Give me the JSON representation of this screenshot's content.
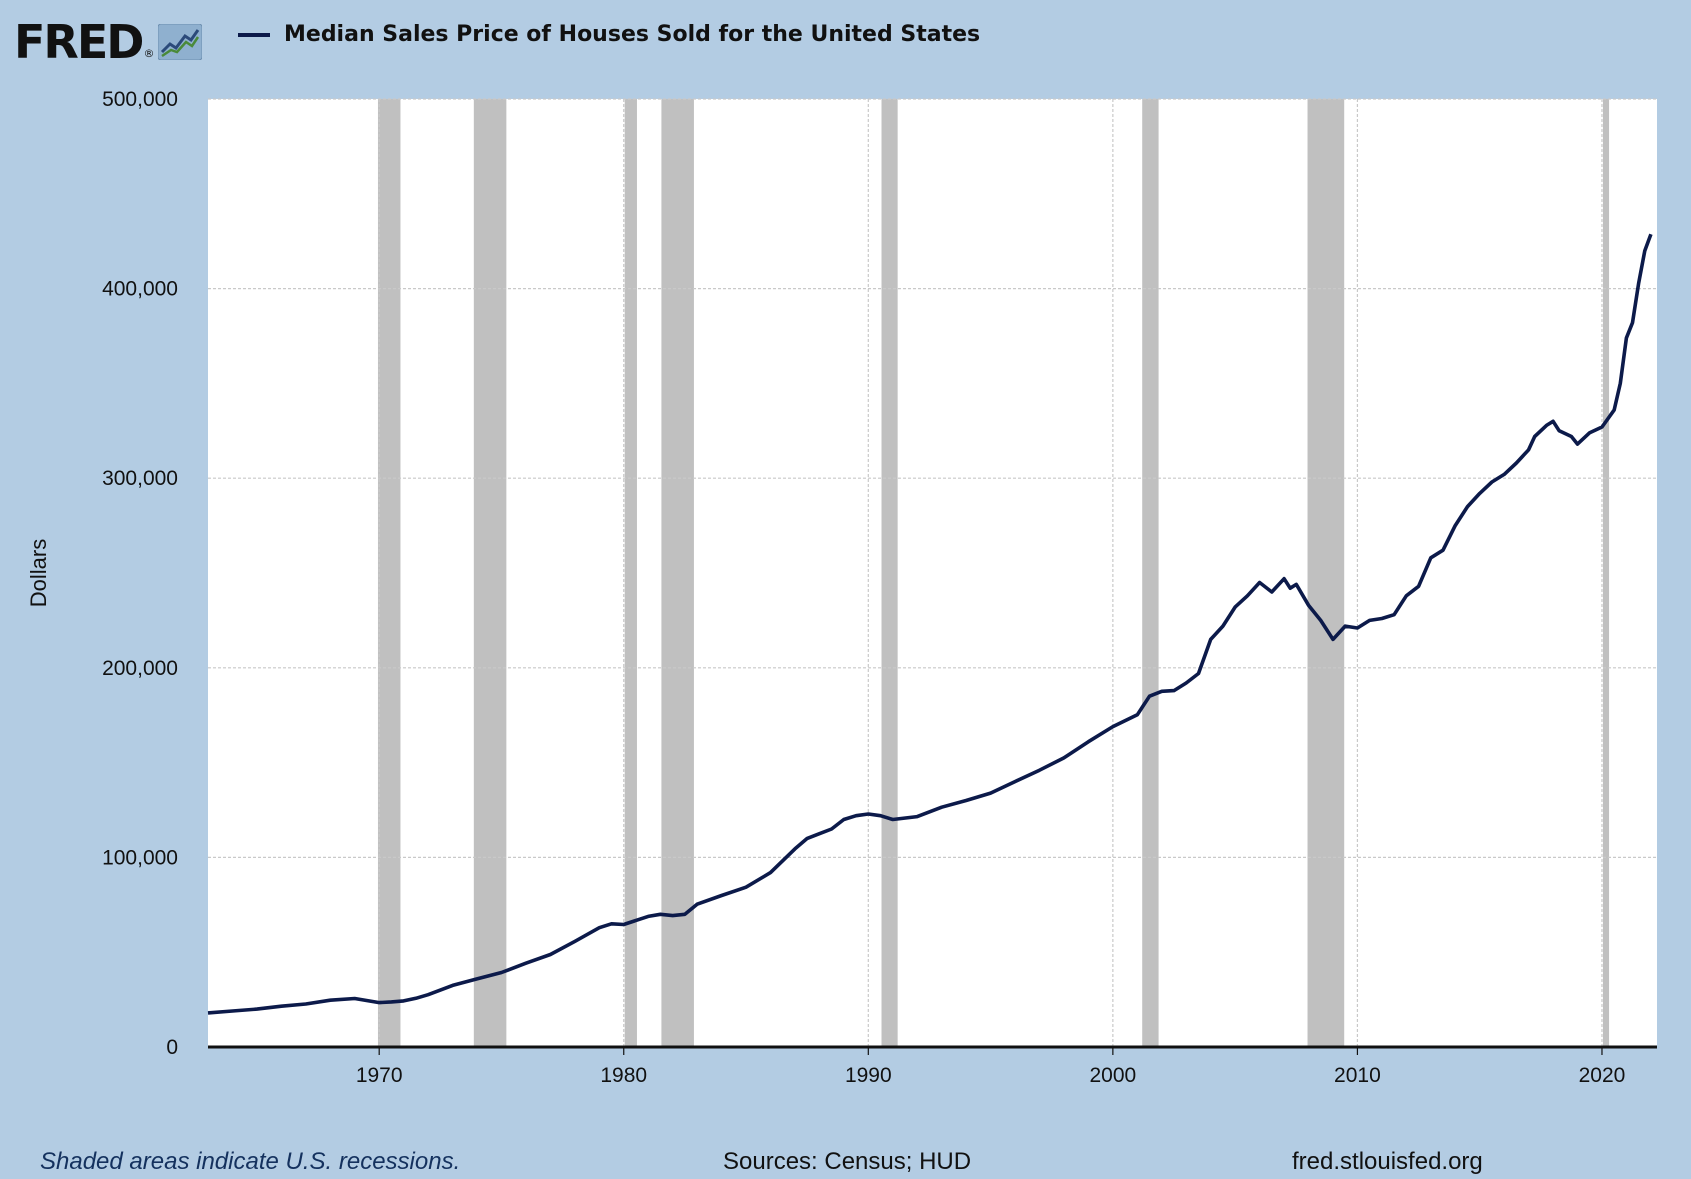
{
  "header": {
    "logo_text": "FRED",
    "logo_mark": "®",
    "logo_icon": "chart-line-icon"
  },
  "footer": {
    "recession_note": "Shaded areas indicate U.S. recessions.",
    "sources": "Sources: Census; HUD",
    "url": "fred.stlouisfed.org"
  },
  "colors": {
    "background": "#b3cce3",
    "plot_background": "#ffffff",
    "line": "#0c1a4a",
    "recession": "#c0c0c0",
    "grid": "#c9c9c9"
  },
  "chart_data": {
    "type": "line",
    "title": "",
    "xlabel": "",
    "ylabel": "Dollars",
    "xlim": [
      1963.0,
      2022.25
    ],
    "ylim": [
      0,
      500000
    ],
    "x_ticks": [
      1970,
      1980,
      1990,
      2000,
      2010,
      2020
    ],
    "y_ticks": [
      0,
      100000,
      200000,
      300000,
      400000,
      500000
    ],
    "y_tick_labels": [
      "0",
      "100,000",
      "200,000",
      "300,000",
      "400,000",
      "500,000"
    ],
    "grid": true,
    "legend_position": "top-left",
    "series": [
      {
        "name": "Median Sales Price of Houses Sold for the United States",
        "x": [
          1963.0,
          1964.0,
          1965.0,
          1966.0,
          1967.0,
          1968.0,
          1969.0,
          1970.0,
          1970.5,
          1971.0,
          1971.5,
          1972.0,
          1973.0,
          1974.0,
          1975.0,
          1976.0,
          1977.0,
          1978.0,
          1979.0,
          1979.5,
          1980.0,
          1981.0,
          1981.5,
          1982.0,
          1982.5,
          1983.0,
          1984.0,
          1985.0,
          1986.0,
          1987.0,
          1987.5,
          1988.0,
          1988.5,
          1989.0,
          1989.5,
          1990.0,
          1990.5,
          1991.0,
          1992.0,
          1993.0,
          1994.0,
          1995.0,
          1996.0,
          1997.0,
          1998.0,
          1999.0,
          2000.0,
          2001.0,
          2001.5,
          2002.0,
          2002.5,
          2003.0,
          2003.5,
          2004.0,
          2004.5,
          2005.0,
          2005.5,
          2006.0,
          2006.5,
          2007.0,
          2007.25,
          2007.5,
          2008.0,
          2008.5,
          2009.0,
          2009.5,
          2010.0,
          2010.5,
          2011.0,
          2011.5,
          2012.0,
          2012.5,
          2013.0,
          2013.5,
          2014.0,
          2014.5,
          2015.0,
          2015.5,
          2016.0,
          2016.5,
          2017.0,
          2017.25,
          2017.75,
          2018.0,
          2018.25,
          2018.75,
          2019.0,
          2019.5,
          2020.0,
          2020.5,
          2020.75,
          2021.0,
          2021.25,
          2021.5,
          2021.75,
          2022.0
        ],
        "values": [
          18000,
          19000,
          20000,
          21500,
          22700,
          24700,
          25600,
          23400,
          23800,
          24300,
          25700,
          27600,
          32500,
          35900,
          39300,
          44200,
          48800,
          55700,
          62900,
          65000,
          64600,
          68900,
          70000,
          69300,
          70000,
          75300,
          79900,
          84300,
          92000,
          104500,
          110000,
          112500,
          115000,
          120000,
          122000,
          122900,
          122000,
          120000,
          121500,
          126500,
          130000,
          133900,
          140000,
          146000,
          152500,
          161000,
          169000,
          175200,
          185000,
          187600,
          188000,
          192000,
          197000,
          215000,
          222000,
          232000,
          238000,
          245000,
          240000,
          247000,
          242000,
          244000,
          233000,
          225000,
          215000,
          222000,
          221000,
          225000,
          226000,
          228000,
          238000,
          243000,
          258000,
          262000,
          275000,
          285000,
          292000,
          298000,
          302000,
          308000,
          315000,
          322000,
          328000,
          330000,
          325000,
          322000,
          318000,
          324000,
          327000,
          336000,
          350000,
          374000,
          382000,
          403000,
          420000,
          428700
        ]
      }
    ],
    "recessions": [
      [
        1969.95,
        1970.87
      ],
      [
        1973.87,
        1975.2
      ],
      [
        1980.04,
        1980.54
      ],
      [
        1981.54,
        1982.87
      ],
      [
        1990.54,
        1991.2
      ],
      [
        2001.2,
        2001.87
      ],
      [
        2007.96,
        2009.46
      ],
      [
        2020.04,
        2020.29
      ]
    ]
  }
}
